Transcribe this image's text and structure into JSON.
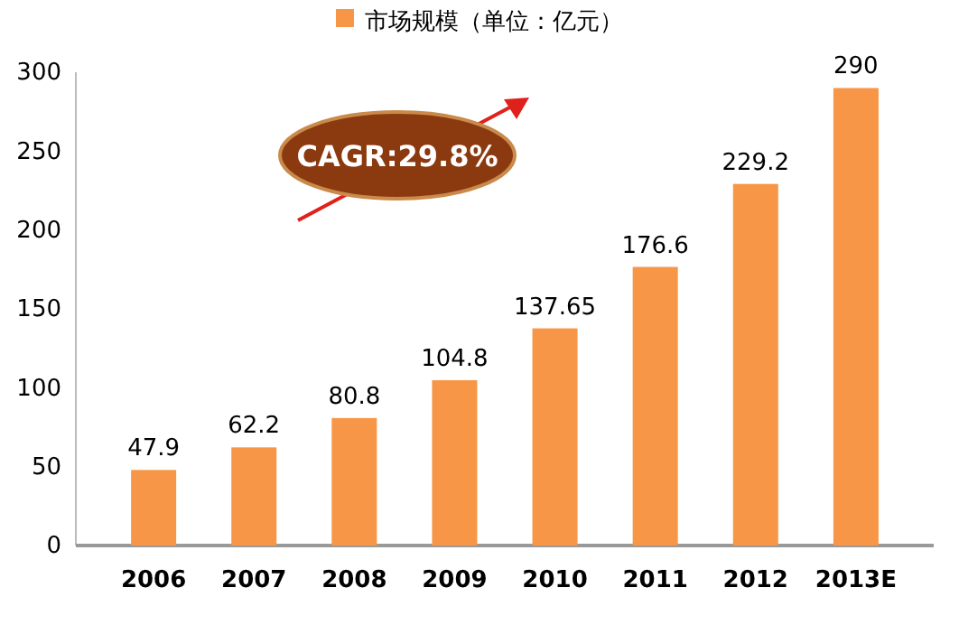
{
  "chart_data": {
    "type": "bar",
    "categories": [
      "2006",
      "2007",
      "2008",
      "2009",
      "2010",
      "2011",
      "2012",
      "2013E"
    ],
    "series": [
      {
        "name": "市场规模（单位：亿元）",
        "color": "#f79646",
        "values": [
          47.9,
          62.2,
          80.8,
          104.8,
          137.65,
          176.6,
          229.2,
          290
        ]
      }
    ],
    "ylim": [
      0,
      300
    ],
    "yticks": [
      0,
      50,
      100,
      150,
      200,
      250,
      300
    ],
    "data_labels": true,
    "legend": "top",
    "grid": false,
    "annotations": [
      "CAGR:29.8%"
    ]
  }
}
